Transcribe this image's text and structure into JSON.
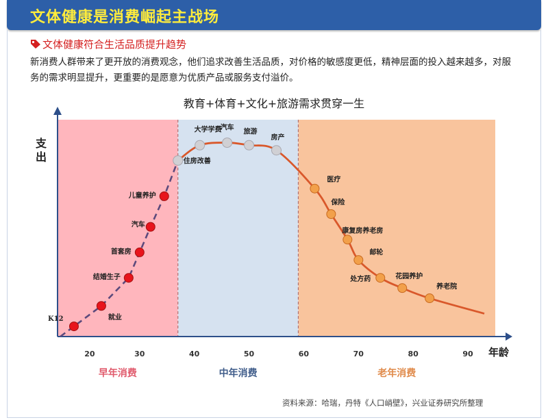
{
  "header": {
    "title": "文体健康是消费崛起主战场"
  },
  "section": {
    "subtitle": "文体健康符合生活品质提升趋势",
    "paragraph": "新消费人群带来了更开放的消费观念，他们追求改善生活品质，对价格的敏感度更低，精神层面的投入越来越多，对服务的需求明显提升，更重要的是愿意为优质产品或服务支付溢价。"
  },
  "colors": {
    "header": "#2d5fa8",
    "header_title": "#ffec3c",
    "subtitle": "#d42020",
    "early": "#ffb6bd",
    "mid": "#d6e2f0",
    "late": "#f9c49d",
    "early_curve": "#5c4a7c",
    "late_curve": "#d9582b"
  },
  "chart_data": {
    "type": "line",
    "title": "教育+体育+文化+旅游需求贯穿一生",
    "ylabel": "支出",
    "xlabel": "年龄",
    "x_ticks": [
      20,
      30,
      40,
      50,
      60,
      70,
      80,
      90
    ],
    "phases": [
      {
        "name": "早年消费",
        "from": 15,
        "to": 37
      },
      {
        "name": "中年消费",
        "from": 37,
        "to": 59
      },
      {
        "name": "老年消费",
        "from": 59,
        "to": 95
      }
    ],
    "early_points": [
      {
        "x": 18,
        "y": 4,
        "label": "K12"
      },
      {
        "x": 23,
        "y": 12,
        "label": "就业"
      },
      {
        "x": 28,
        "y": 23,
        "label": "结婚生子"
      },
      {
        "x": 30,
        "y": 33,
        "label": "首套房"
      },
      {
        "x": 32,
        "y": 43,
        "label": "汽车"
      },
      {
        "x": 34.5,
        "y": 55,
        "label": "儿童养护"
      }
    ],
    "mid_points": [
      {
        "x": 37,
        "y": 69,
        "label": "住房改善"
      },
      {
        "x": 41,
        "y": 75,
        "label": "大学学费"
      },
      {
        "x": 46,
        "y": 76,
        "label": "汽车"
      },
      {
        "x": 50,
        "y": 75,
        "label": "旅游"
      },
      {
        "x": 55,
        "y": 73,
        "label": "房产"
      }
    ],
    "late_points": [
      {
        "x": 62,
        "y": 58,
        "label": "医疗"
      },
      {
        "x": 65,
        "y": 48,
        "label": "保险"
      },
      {
        "x": 68,
        "y": 38,
        "label": "康复房养老房"
      },
      {
        "x": 70,
        "y": 30,
        "label": "邮轮"
      },
      {
        "x": 74,
        "y": 23,
        "label": "处方药"
      },
      {
        "x": 78,
        "y": 19,
        "label": "花园养护"
      },
      {
        "x": 83,
        "y": 15,
        "label": "养老院"
      }
    ]
  },
  "source": "资料来源：哈瑞，丹特《人口峭壁》，兴业证券研究所整理"
}
